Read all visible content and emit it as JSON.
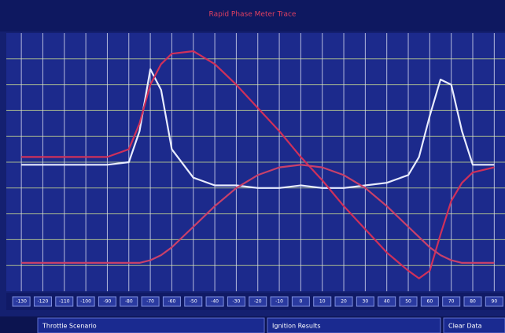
{
  "chart_data": {
    "type": "line",
    "title": "Rapid Phase Meter Trace",
    "x": [
      -130,
      -120,
      -110,
      -100,
      -90,
      -80,
      -75,
      -70,
      -65,
      -60,
      -50,
      -40,
      -30,
      -20,
      -10,
      0,
      10,
      20,
      30,
      40,
      50,
      55,
      60,
      65,
      70,
      75,
      80,
      90
    ],
    "series": [
      {
        "color": "#e8ecff",
        "values": [
          49,
          49,
          49,
          49,
          49,
          50,
          62,
          86,
          78,
          55,
          44,
          41,
          41,
          40,
          40,
          41,
          40,
          40,
          41,
          42,
          45,
          52,
          68,
          82,
          80,
          62,
          49,
          49
        ]
      },
      {
        "color": "#d0305a",
        "values": [
          52,
          52,
          52,
          52,
          52,
          55,
          65,
          80,
          88,
          92,
          93,
          88,
          80,
          71,
          62,
          52,
          43,
          33,
          24,
          15,
          8,
          5,
          8,
          22,
          35,
          42,
          46,
          48
        ]
      },
      {
        "color": "#c8406a",
        "values": [
          11,
          11,
          11,
          11,
          11,
          11,
          11,
          12,
          14,
          17,
          25,
          33,
          40,
          45,
          48,
          49,
          48,
          45,
          40,
          33,
          25,
          21,
          17,
          14,
          12,
          11,
          11,
          11
        ]
      }
    ],
    "xlim": [
      -137,
      95
    ],
    "ylim": [
      0,
      100
    ],
    "xticks": [
      -130,
      -120,
      -110,
      -100,
      -90,
      -80,
      -70,
      -60,
      -50,
      -40,
      -30,
      -20,
      -10,
      0,
      10,
      20,
      30,
      40,
      50,
      60,
      70,
      80,
      90
    ],
    "grid": true
  },
  "buttons": [
    "Throttle Scenario",
    "Ignition Results",
    "Clear Data"
  ]
}
